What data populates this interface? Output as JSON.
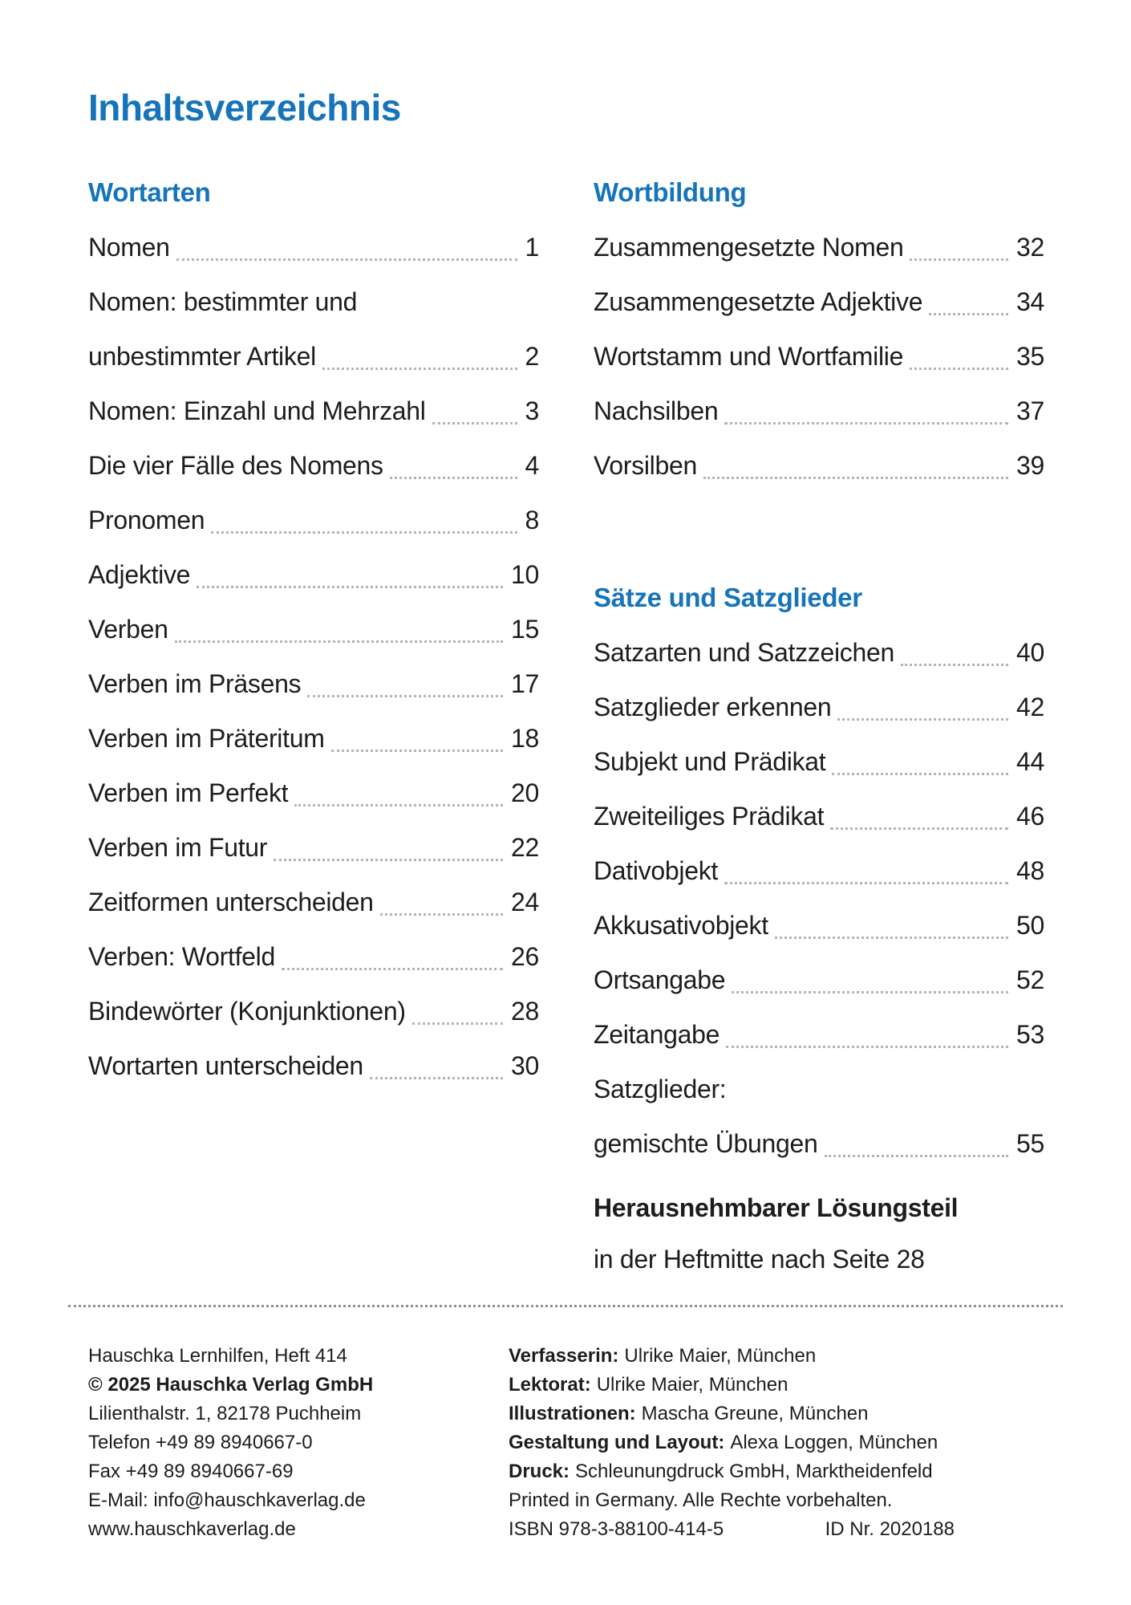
{
  "page": {
    "title": "Inhaltsverzeichnis"
  },
  "accent_color": "#1574ba",
  "toc": {
    "left": {
      "section_title": "Wortarten",
      "entries": [
        {
          "label": "Nomen",
          "page": "1"
        },
        {
          "label": "Nomen: bestimmter und",
          "page": ""
        },
        {
          "label": "unbestimmter Artikel",
          "page": "2"
        },
        {
          "label": "Nomen: Einzahl und Mehrzahl",
          "page": "3"
        },
        {
          "label": "Die vier Fälle des Nomens",
          "page": "4"
        },
        {
          "label": "Pronomen",
          "page": "8"
        },
        {
          "label": "Adjektive",
          "page": "10"
        },
        {
          "label": "Verben",
          "page": "15"
        },
        {
          "label": "Verben im Präsens",
          "page": "17"
        },
        {
          "label": "Verben im Präteritum",
          "page": "18"
        },
        {
          "label": "Verben im Perfekt",
          "page": "20"
        },
        {
          "label": "Verben im Futur",
          "page": "22"
        },
        {
          "label": "Zeitformen unterscheiden",
          "page": "24"
        },
        {
          "label": "Verben: Wortfeld",
          "page": "26"
        },
        {
          "label": "Bindewörter (Konjunktionen)",
          "page": "28"
        },
        {
          "label": "Wortarten unterscheiden",
          "page": "30"
        }
      ]
    },
    "right": {
      "section1": {
        "title": "Wortbildung",
        "entries": [
          {
            "label": "Zusammengesetzte Nomen",
            "page": "32"
          },
          {
            "label": "Zusammengesetzte Adjektive",
            "page": "34"
          },
          {
            "label": "Wortstamm und Wortfamilie",
            "page": "35"
          },
          {
            "label": "Nachsilben",
            "page": "37"
          },
          {
            "label": "Vorsilben",
            "page": "39"
          }
        ]
      },
      "section2": {
        "title": "Sätze und Satzglieder",
        "entries": [
          {
            "label": "Satzarten und Satzzeichen",
            "page": "40"
          },
          {
            "label": "Satzglieder erkennen",
            "page": "42"
          },
          {
            "label": "Subjekt und Prädikat",
            "page": "44"
          },
          {
            "label": "Zweiteiliges Prädikat",
            "page": "46"
          },
          {
            "label": "Dativobjekt",
            "page": "48"
          },
          {
            "label": "Akkusativobjekt",
            "page": "50"
          },
          {
            "label": "Ortsangabe",
            "page": "52"
          },
          {
            "label": "Zeitangabe",
            "page": "53"
          },
          {
            "label": "Satzglieder:",
            "page": ""
          },
          {
            "label": "gemischte Übungen",
            "page": "55"
          }
        ]
      },
      "note_bold": "Herausnehmbarer Lösungsteil",
      "note_text": "in der Heftmitte nach Seite 28"
    }
  },
  "footer": {
    "left_lines": [
      {
        "text": "Hauschka Lernhilfen, Heft 414",
        "bold": false
      },
      {
        "text": "© 2025 Hauschka Verlag GmbH",
        "bold": true
      },
      {
        "text": "Lilienthalstr. 1, 82178 Puchheim",
        "bold": false
      },
      {
        "text": "Telefon +49 89 8940667-0",
        "bold": false
      },
      {
        "text": "Fax +49 89 8940667-69",
        "bold": false
      },
      {
        "text": "E-Mail: info@hauschkaverlag.de",
        "bold": false
      },
      {
        "text": "www.hauschkaverlag.de",
        "bold": false
      }
    ],
    "credits": [
      {
        "label": "Verfasserin:",
        "text": "Ulrike Maier, München"
      },
      {
        "label": "Lektorat:",
        "text": "Ulrike Maier, München"
      },
      {
        "label": "Illustrationen:",
        "text": "Mascha Greune, München"
      },
      {
        "label": "Gestaltung und Layout:",
        "text": "Alexa Loggen, München"
      },
      {
        "label": "Druck:",
        "text": "Schleunungdruck GmbH, Marktheidenfeld"
      }
    ],
    "printed_line": "Printed in Germany. Alle Rechte vorbehalten.",
    "isbn": "ISBN 978-3-88100-414-5",
    "id_nr": "ID Nr. 2020188"
  }
}
